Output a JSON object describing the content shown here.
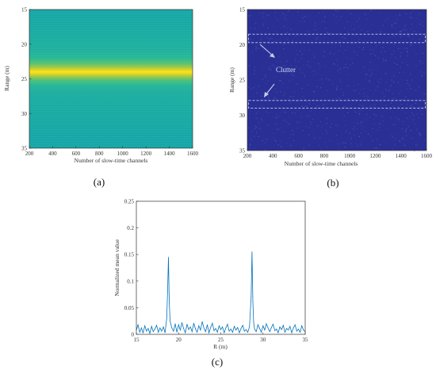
{
  "panels": {
    "a": {
      "caption": "(a)"
    },
    "b": {
      "caption": "(b)",
      "annotation": "Clutter"
    },
    "c": {
      "caption": "(c)"
    }
  },
  "chart_data": [
    {
      "id": "a",
      "type": "heatmap",
      "title": "",
      "xlabel": "Number of slow-time channels",
      "ylabel": "Range (m)",
      "xlim": [
        200,
        1600
      ],
      "ylim": [
        35,
        15
      ],
      "xticks": [
        200,
        400,
        600,
        800,
        1000,
        1200,
        1400,
        1600
      ],
      "yticks": [
        15,
        20,
        25,
        30,
        35
      ],
      "intensity_profile": {
        "range_m": [
          15,
          17,
          19,
          20,
          21,
          22,
          22.8,
          23.3,
          23.7,
          24.0,
          24.3,
          24.7,
          25.2,
          26,
          27,
          29,
          31,
          33,
          35
        ],
        "intensity": [
          0.52,
          0.53,
          0.55,
          0.56,
          0.58,
          0.62,
          0.7,
          0.8,
          0.92,
          1.0,
          0.92,
          0.8,
          0.68,
          0.6,
          0.56,
          0.54,
          0.53,
          0.52,
          0.51
        ]
      },
      "colormap": "parula"
    },
    {
      "id": "b",
      "type": "heatmap",
      "title": "",
      "xlabel": "Number of slow-time channels",
      "ylabel": "Range (m)",
      "xlim": [
        200,
        1600
      ],
      "ylim": [
        35,
        15
      ],
      "xticks": [
        200,
        400,
        600,
        800,
        1000,
        1200,
        1400,
        1600
      ],
      "yticks": [
        15,
        20,
        25,
        30,
        35
      ],
      "clutter_bands_m": [
        [
          18.5,
          19.7
        ],
        [
          27.9,
          29.0
        ]
      ],
      "colormap": "dark-blue noise"
    },
    {
      "id": "c",
      "type": "line",
      "title": "",
      "xlabel": "R (m)",
      "ylabel": "Normalized mean value",
      "xlim": [
        15,
        35
      ],
      "ylim": [
        0,
        0.25
      ],
      "xticks": [
        15,
        20,
        25,
        30,
        35
      ],
      "yticks": [
        0,
        0.05,
        0.1,
        0.15,
        0.2,
        0.25
      ],
      "x": [
        15.0,
        15.2,
        15.4,
        15.6,
        15.8,
        16.0,
        16.2,
        16.4,
        16.6,
        16.8,
        17.0,
        17.2,
        17.4,
        17.6,
        17.8,
        18.0,
        18.2,
        18.4,
        18.6,
        18.7,
        18.8,
        18.9,
        19.0,
        19.2,
        19.4,
        19.6,
        19.8,
        20.0,
        20.2,
        20.4,
        20.6,
        20.8,
        21.0,
        21.2,
        21.4,
        21.6,
        21.8,
        22.0,
        22.2,
        22.4,
        22.6,
        22.8,
        23.0,
        23.2,
        23.4,
        23.6,
        23.8,
        24.0,
        24.2,
        24.4,
        24.6,
        24.8,
        25.0,
        25.2,
        25.4,
        25.6,
        25.8,
        26.0,
        26.2,
        26.4,
        26.6,
        26.8,
        27.0,
        27.2,
        27.4,
        27.6,
        27.8,
        28.0,
        28.2,
        28.4,
        28.6,
        28.7,
        28.8,
        28.9,
        29.0,
        29.2,
        29.4,
        29.6,
        29.8,
        30.0,
        30.2,
        30.4,
        30.6,
        30.8,
        31.0,
        31.2,
        31.4,
        31.6,
        31.8,
        32.0,
        32.2,
        32.4,
        32.6,
        32.8,
        33.0,
        33.2,
        33.4,
        33.6,
        33.8,
        34.0,
        34.2,
        34.4,
        34.6,
        34.8,
        35.0
      ],
      "series": [
        {
          "values": [
            0.008,
            0.018,
            0.004,
            0.012,
            0.003,
            0.016,
            0.006,
            0.011,
            0.002,
            0.015,
            0.005,
            0.01,
            0.017,
            0.004,
            0.012,
            0.006,
            0.014,
            0.003,
            0.03,
            0.08,
            0.145,
            0.06,
            0.025,
            0.012,
            0.006,
            0.02,
            0.004,
            0.018,
            0.008,
            0.022,
            0.011,
            0.003,
            0.019,
            0.009,
            0.014,
            0.005,
            0.021,
            0.01,
            0.004,
            0.016,
            0.008,
            0.024,
            0.012,
            0.005,
            0.018,
            0.003,
            0.013,
            0.021,
            0.007,
            0.011,
            0.004,
            0.016,
            0.009,
            0.014,
            0.003,
            0.012,
            0.019,
            0.006,
            0.01,
            0.004,
            0.015,
            0.008,
            0.013,
            0.003,
            0.011,
            0.017,
            0.006,
            0.009,
            0.004,
            0.014,
            0.07,
            0.155,
            0.06,
            0.022,
            0.01,
            0.005,
            0.018,
            0.011,
            0.004,
            0.016,
            0.008,
            0.02,
            0.012,
            0.005,
            0.013,
            0.019,
            0.007,
            0.01,
            0.003,
            0.014,
            0.009,
            0.017,
            0.004,
            0.011,
            0.008,
            0.015,
            0.003,
            0.012,
            0.018,
            0.006,
            0.01,
            0.004,
            0.016,
            0.008,
            0.005
          ],
          "color": "#0072bd"
        }
      ]
    }
  ]
}
